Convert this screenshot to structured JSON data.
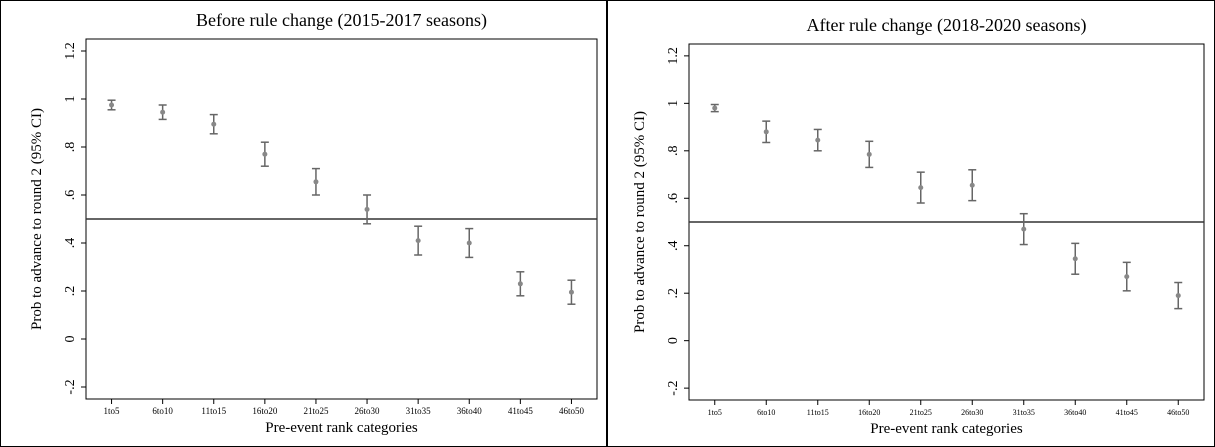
{
  "chart_data": [
    {
      "type": "scatter",
      "subtype": "point-estimate-with-95ci-error-bars",
      "title": "Before rule change (2015-2017 seasons)",
      "xlabel": "Pre-event rank categories",
      "ylabel": "Prob to advance to round 2 (95% CI)",
      "categories": [
        "1to5",
        "6to10",
        "11to15",
        "16to20",
        "21to25",
        "26to30",
        "31to35",
        "36to40",
        "41to45",
        "46to50"
      ],
      "series": [
        {
          "values": [
            0.975,
            0.945,
            0.895,
            0.77,
            0.655,
            0.54,
            0.41,
            0.4,
            0.23,
            0.195
          ],
          "ci_low": [
            0.955,
            0.915,
            0.855,
            0.72,
            0.6,
            0.48,
            0.35,
            0.34,
            0.18,
            0.145
          ],
          "ci_high": [
            0.995,
            0.975,
            0.935,
            0.82,
            0.71,
            0.6,
            0.47,
            0.46,
            0.28,
            0.245
          ]
        }
      ],
      "yticks": [
        "-.2",
        "0",
        ".2",
        ".4",
        ".6",
        ".8",
        "1",
        "1.2"
      ],
      "ylim": [
        -0.25,
        1.25
      ],
      "reference_line_y": 0.5,
      "grid": false
    },
    {
      "type": "scatter",
      "subtype": "point-estimate-with-95ci-error-bars",
      "title": "After rule change (2018-2020 seasons)",
      "xlabel": "Pre-event rank categories",
      "ylabel": "Prob to advance to round 2 (95% CI)",
      "categories": [
        "1to5",
        "6to10",
        "11to15",
        "16to20",
        "21to25",
        "26to30",
        "31to35",
        "36to40",
        "41to45",
        "46to50"
      ],
      "series": [
        {
          "values": [
            0.98,
            0.88,
            0.845,
            0.785,
            0.645,
            0.655,
            0.47,
            0.345,
            0.27,
            0.19
          ],
          "ci_low": [
            0.965,
            0.835,
            0.8,
            0.73,
            0.58,
            0.59,
            0.405,
            0.28,
            0.21,
            0.135
          ],
          "ci_high": [
            0.995,
            0.925,
            0.89,
            0.84,
            0.71,
            0.72,
            0.535,
            0.41,
            0.33,
            0.245
          ]
        }
      ],
      "yticks": [
        "-.2",
        "0",
        ".2",
        ".4",
        ".6",
        ".8",
        "1",
        "1.2"
      ],
      "ylim": [
        -0.25,
        1.25
      ],
      "reference_line_y": 0.5,
      "grid": false
    }
  ]
}
